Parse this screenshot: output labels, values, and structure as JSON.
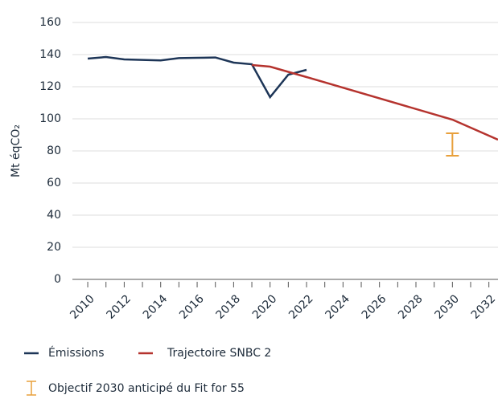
{
  "chart_data": {
    "type": "line",
    "y_label": "Mt éqCO₂",
    "xlim": [
      2009.6,
      2032.5
    ],
    "xticks": [
      2010,
      2012,
      2014,
      2016,
      2018,
      2020,
      2022,
      2024,
      2026,
      2028,
      2030,
      2032
    ],
    "minor_xticks": [
      2011,
      2013,
      2015,
      2017,
      2019,
      2021,
      2023,
      2025,
      2027,
      2029,
      2031
    ],
    "ylim": [
      0,
      160
    ],
    "yticks": [
      0,
      20,
      40,
      60,
      80,
      100,
      120,
      140,
      160
    ],
    "grid": true,
    "series": [
      {
        "name": "Émissions",
        "color": "#1d3557",
        "x": [
          2010,
          2011,
          2012,
          2013,
          2014,
          2015,
          2016,
          2017,
          2018,
          2019,
          2020,
          2021,
          2022
        ],
        "values": [
          137.5,
          138.5,
          137,
          136.7,
          136.4,
          137.8,
          138,
          138.2,
          135,
          134,
          113.5,
          127.5,
          130.5
        ]
      },
      {
        "name": "Trajectoire SNBC 2",
        "color": "#b5332e",
        "x": [
          2019,
          2020,
          2022,
          2030,
          2032.5
        ],
        "values": [
          133.5,
          132.5,
          126,
          99.5,
          87
        ]
      }
    ],
    "objective": {
      "name": "Objectif 2030 anticipé du Fit for 55",
      "color": "#e8a03c",
      "x": 2030,
      "low": 77,
      "high": 91
    }
  }
}
